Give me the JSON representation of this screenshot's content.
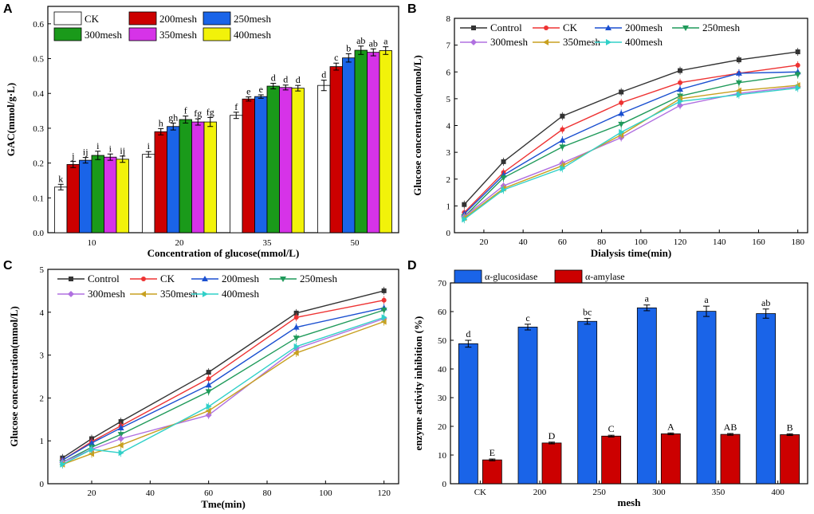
{
  "panels": {
    "A": "A",
    "B": "B",
    "C": "C",
    "D": "D"
  },
  "chart_data": [
    {
      "id": "A",
      "type": "bar",
      "xlabel": "Concentration of glucose(mmol/L)",
      "ylabel": "GAC(mmol/g·L)",
      "ylim": [
        0,
        0.65
      ],
      "yticks": [
        "0.0",
        "0.1",
        "0.2",
        "0.3",
        "0.4",
        "0.5",
        "0.6"
      ],
      "categories": [
        "10",
        "20",
        "35",
        "50"
      ],
      "legend_position": "top-left",
      "series": [
        {
          "name": "CK",
          "color": "#ffffff",
          "values": [
            0.131,
            0.225,
            0.337,
            0.423
          ],
          "errors": [
            0.008,
            0.008,
            0.009,
            0.015
          ],
          "labels": [
            "k",
            "i",
            "f",
            "d"
          ]
        },
        {
          "name": "200mesh",
          "color": "#cc0000",
          "values": [
            0.196,
            0.29,
            0.384,
            0.477
          ],
          "errors": [
            0.009,
            0.009,
            0.006,
            0.01
          ],
          "labels": [
            "j",
            "h",
            "e",
            "c"
          ]
        },
        {
          "name": "250mesh",
          "color": "#1a64e8",
          "values": [
            0.208,
            0.305,
            0.391,
            0.502
          ],
          "errors": [
            0.008,
            0.01,
            0.005,
            0.012
          ],
          "labels": [
            "ij",
            "gh",
            "e",
            "b"
          ]
        },
        {
          "name": "300mesh",
          "color": "#1a9a1a",
          "values": [
            0.222,
            0.325,
            0.421,
            0.524
          ],
          "errors": [
            0.012,
            0.01,
            0.008,
            0.012
          ],
          "labels": [
            "i",
            "f",
            "d",
            "ab"
          ]
        },
        {
          "name": "350mesh",
          "color": "#d633e8",
          "values": [
            0.217,
            0.318,
            0.417,
            0.518
          ],
          "errors": [
            0.009,
            0.009,
            0.007,
            0.01
          ],
          "labels": [
            "i",
            "fg",
            "d",
            "ab"
          ]
        },
        {
          "name": "400mesh",
          "color": "#f2f20a",
          "values": [
            0.211,
            0.318,
            0.415,
            0.523
          ],
          "errors": [
            0.009,
            0.013,
            0.008,
            0.011
          ],
          "labels": [
            "ij",
            "fg",
            "d",
            "a"
          ]
        }
      ]
    },
    {
      "id": "B",
      "type": "line",
      "xlabel": "Dialysis time(min)",
      "ylabel": "Glucose concentration(mmol/L)",
      "xlim": [
        5,
        185
      ],
      "ylim": [
        0,
        8
      ],
      "xticks": [
        "20",
        "40",
        "60",
        "80",
        "100",
        "120",
        "140",
        "160",
        "180"
      ],
      "yticks": [
        "0",
        "1",
        "2",
        "3",
        "4",
        "5",
        "6",
        "7",
        "8"
      ],
      "x": [
        10,
        30,
        60,
        90,
        120,
        150,
        180
      ],
      "legend_position": "top-left",
      "series": [
        {
          "name": "Control",
          "color": "#333333",
          "marker": "square",
          "values": [
            1.05,
            2.65,
            4.35,
            5.25,
            6.05,
            6.45,
            6.75
          ]
        },
        {
          "name": "CK",
          "color": "#ee3333",
          "marker": "circle",
          "values": [
            0.75,
            2.25,
            3.85,
            4.85,
            5.6,
            5.95,
            6.25
          ]
        },
        {
          "name": "200mesh",
          "color": "#1a4fd0",
          "marker": "triangle-up",
          "values": [
            0.7,
            2.15,
            3.45,
            4.45,
            5.35,
            5.95,
            6.0
          ]
        },
        {
          "name": "250mesh",
          "color": "#1f9a5a",
          "marker": "triangle-down",
          "values": [
            0.6,
            2.05,
            3.2,
            4.05,
            5.1,
            5.6,
            5.9
          ]
        },
        {
          "name": "300mesh",
          "color": "#b070e0",
          "marker": "diamond",
          "values": [
            0.6,
            1.75,
            2.6,
            3.55,
            4.75,
            5.2,
            5.45
          ]
        },
        {
          "name": "350mesh",
          "color": "#c8a020",
          "marker": "triangle-left",
          "values": [
            0.55,
            1.65,
            2.5,
            3.65,
            5.0,
            5.3,
            5.5
          ]
        },
        {
          "name": "400mesh",
          "color": "#30d0c8",
          "marker": "triangle-right",
          "values": [
            0.5,
            1.6,
            2.4,
            3.75,
            4.9,
            5.15,
            5.4
          ]
        }
      ]
    },
    {
      "id": "C",
      "type": "line",
      "xlabel": "Tme(min)",
      "ylabel": "Glucose concentration(mmol/L)",
      "xlim": [
        5,
        125
      ],
      "ylim": [
        0,
        5
      ],
      "xticks": [
        "20",
        "40",
        "60",
        "80",
        "100",
        "120"
      ],
      "yticks": [
        "0",
        "1",
        "2",
        "3",
        "4",
        "5"
      ],
      "x": [
        10,
        20,
        30,
        60,
        90,
        120
      ],
      "legend_position": "top-left",
      "series": [
        {
          "name": "Control",
          "color": "#333333",
          "marker": "square",
          "values": [
            0.6,
            1.05,
            1.45,
            2.6,
            3.98,
            4.5
          ]
        },
        {
          "name": "CK",
          "color": "#ee3333",
          "marker": "circle",
          "values": [
            0.55,
            0.98,
            1.35,
            2.45,
            3.88,
            4.28
          ]
        },
        {
          "name": "200mesh",
          "color": "#1a4fd0",
          "marker": "triangle-up",
          "values": [
            0.55,
            0.95,
            1.3,
            2.3,
            3.65,
            4.1
          ]
        },
        {
          "name": "250mesh",
          "color": "#1f9a5a",
          "marker": "triangle-down",
          "values": [
            0.5,
            0.85,
            1.15,
            2.15,
            3.4,
            4.05
          ]
        },
        {
          "name": "300mesh",
          "color": "#b070e0",
          "marker": "diamond",
          "values": [
            0.5,
            0.8,
            1.05,
            1.6,
            3.15,
            3.85
          ]
        },
        {
          "name": "350mesh",
          "color": "#c8a020",
          "marker": "triangle-left",
          "values": [
            0.45,
            0.7,
            0.9,
            1.7,
            3.05,
            3.78
          ]
        },
        {
          "name": "400mesh",
          "color": "#30d0c8",
          "marker": "triangle-right",
          "values": [
            0.45,
            0.8,
            0.72,
            1.8,
            3.2,
            3.88
          ]
        }
      ]
    },
    {
      "id": "D",
      "type": "bar",
      "xlabel": "mesh",
      "ylabel": "enzyme activity inhibition (%)",
      "ylim": [
        0,
        70
      ],
      "yticks": [
        "0",
        "10",
        "20",
        "30",
        "40",
        "50",
        "60",
        "70"
      ],
      "categories": [
        "CK",
        "200",
        "250",
        "300",
        "350",
        "400"
      ],
      "legend_position": "top",
      "series": [
        {
          "name": "α-glucosidase",
          "color": "#1a64e8",
          "values": [
            48.8,
            54.6,
            56.6,
            61.3,
            60.1,
            59.3
          ],
          "errors": [
            1.2,
            1.0,
            1.0,
            1.0,
            1.8,
            1.6
          ],
          "labels": [
            "d",
            "c",
            "bc",
            "a",
            "a",
            "ab"
          ]
        },
        {
          "name": "α-amylase",
          "color": "#cc0000",
          "values": [
            8.3,
            14.2,
            16.6,
            17.4,
            17.2,
            17.1
          ],
          "errors": [
            0.3,
            0.3,
            0.3,
            0.3,
            0.3,
            0.3
          ],
          "labels": [
            "E",
            "D",
            "C",
            "A",
            "AB",
            "B"
          ]
        }
      ]
    }
  ]
}
